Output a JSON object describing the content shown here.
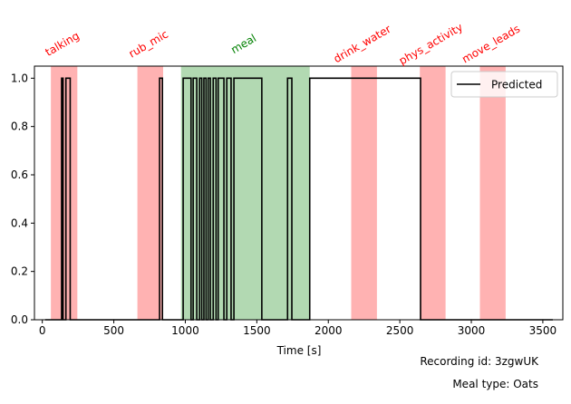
{
  "chart_data": {
    "type": "line",
    "xlabel": "Time [s]",
    "ylabel": "",
    "xlim": [
      -55,
      3640
    ],
    "ylim": [
      0,
      1.05
    ],
    "xticks": [
      0,
      500,
      1000,
      1500,
      2000,
      2500,
      3000,
      3500
    ],
    "yticks": [
      0.0,
      0.2,
      0.4,
      0.6,
      0.8,
      1.0
    ],
    "ytick_labels": [
      "0.0",
      "0.2",
      "0.4",
      "0.6",
      "0.8",
      "1.0"
    ],
    "legend": {
      "position": "top-right",
      "entries": [
        "Predicted"
      ]
    },
    "grid": false,
    "colors": {
      "predicted": "#000000",
      "event": "#ff0000",
      "meal": "#008000"
    },
    "events": [
      {
        "label": "talking",
        "start": 60,
        "end": 245,
        "kind": "event"
      },
      {
        "label": "rub_mic",
        "start": 665,
        "end": 845,
        "kind": "event"
      },
      {
        "label": "meal",
        "start": 970,
        "end": 1870,
        "kind": "meal"
      },
      {
        "label": "drink_water",
        "start": 2160,
        "end": 2340,
        "kind": "event"
      },
      {
        "label": "phys_activity",
        "start": 2640,
        "end": 2820,
        "kind": "event"
      },
      {
        "label": "move_leads",
        "start": 3060,
        "end": 3240,
        "kind": "event"
      }
    ],
    "series": [
      {
        "name": "Predicted",
        "x": [
          20,
          135,
          135,
          145,
          145,
          165,
          165,
          195,
          195,
          820,
          820,
          840,
          840,
          985,
          985,
          1040,
          1040,
          1055,
          1055,
          1080,
          1080,
          1100,
          1100,
          1115,
          1115,
          1130,
          1130,
          1145,
          1145,
          1160,
          1160,
          1175,
          1175,
          1195,
          1195,
          1215,
          1215,
          1230,
          1230,
          1270,
          1270,
          1290,
          1290,
          1320,
          1320,
          1340,
          1340,
          1535,
          1535,
          1715,
          1715,
          1745,
          1745,
          1870,
          1870,
          2645,
          2645,
          2745,
          2745,
          3570
        ],
        "y": [
          0,
          0,
          1,
          1,
          0,
          0,
          1,
          1,
          0,
          0,
          1,
          1,
          0,
          0,
          1,
          1,
          0,
          0,
          1,
          1,
          0,
          0,
          1,
          1,
          0,
          0,
          1,
          1,
          0,
          0,
          1,
          1,
          0,
          0,
          1,
          1,
          0,
          0,
          1,
          1,
          0,
          0,
          1,
          1,
          0,
          0,
          1,
          1,
          0,
          0,
          1,
          1,
          0,
          0,
          1,
          1,
          0,
          0,
          0,
          0
        ]
      }
    ]
  },
  "footer": {
    "recording": "Recording id: 3zgwUK",
    "meal_type": "Meal type: Oats"
  }
}
